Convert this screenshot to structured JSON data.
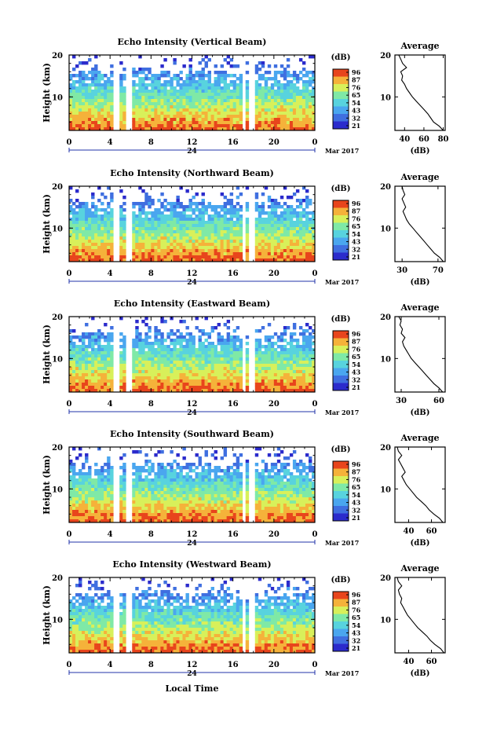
{
  "colorbar": {
    "unit_label": "(dB)",
    "ticks": [
      "96",
      "87",
      "76",
      "65",
      "54",
      "43",
      "32",
      "21"
    ],
    "colors": [
      "#2b2bcc",
      "#3f6fe0",
      "#4aa6ef",
      "#58d3de",
      "#7fe9a6",
      "#d8f05a",
      "#f5b23a",
      "#e8451c"
    ]
  },
  "shared": {
    "x_ticks": [
      "0",
      "4",
      "8",
      "12",
      "16",
      "20",
      "0"
    ],
    "day_label": "24",
    "month_label": "Mar 2017",
    "x_axis_title": "Local Time",
    "y_axis_title": "Height (km)",
    "y_ticks": [
      "20",
      "10"
    ],
    "avg_title": "Average",
    "avg_y_ticks": [
      "20",
      "10"
    ],
    "avg_x_unit": "(dB)"
  },
  "chart_data": [
    {
      "type": "heatmap",
      "title": "Echo Intensity (Vertical Beam)",
      "xlabel": "",
      "ylabel": "Height (km)",
      "xlim": [
        0,
        24
      ],
      "ylim": [
        2,
        20
      ],
      "data_gaps_hours": [
        [
          4.2,
          4.8
        ],
        [
          5.6,
          6.0
        ],
        [
          16.8,
          17.3
        ],
        [
          17.6,
          18.0
        ]
      ],
      "avg_profile": {
        "x_ticks": [
          "40",
          "60",
          "80"
        ],
        "xlim": [
          30,
          82
        ],
        "height_km": [
          2,
          3,
          4,
          5,
          6,
          7,
          8,
          9,
          10,
          11,
          12,
          13,
          14,
          15,
          16,
          17,
          18,
          19,
          20
        ],
        "db": [
          80,
          76,
          70,
          67,
          64,
          60,
          56,
          52,
          48,
          45,
          42,
          40,
          37,
          38,
          36,
          42,
          38,
          36,
          34
        ]
      }
    },
    {
      "type": "heatmap",
      "title": "Echo Intensity (Northward Beam)",
      "xlabel": "",
      "ylabel": "Height (km)",
      "xlim": [
        0,
        24
      ],
      "ylim": [
        2,
        20
      ],
      "data_gaps_hours": [
        [
          4.2,
          4.8
        ],
        [
          5.6,
          6.0
        ],
        [
          16.8,
          17.3
        ],
        [
          17.6,
          18.0
        ]
      ],
      "avg_profile": {
        "x_ticks": [
          "30",
          "70"
        ],
        "xlim": [
          22,
          78
        ],
        "height_km": [
          2,
          3,
          4,
          5,
          6,
          7,
          8,
          9,
          10,
          11,
          12,
          13,
          14,
          15,
          16,
          17,
          18,
          19,
          20
        ],
        "db": [
          76,
          72,
          66,
          62,
          58,
          54,
          50,
          46,
          42,
          38,
          35,
          33,
          31,
          34,
          32,
          30,
          33,
          31,
          30
        ]
      }
    },
    {
      "type": "heatmap",
      "title": "Echo Intensity (Eastward Beam)",
      "xlabel": "",
      "ylabel": "Height (km)",
      "xlim": [
        0,
        24
      ],
      "ylim": [
        2,
        20
      ],
      "data_gaps_hours": [
        [
          4.2,
          4.8
        ],
        [
          5.6,
          6.0
        ],
        [
          16.8,
          17.3
        ],
        [
          17.6,
          18.0
        ]
      ],
      "avg_profile": {
        "x_ticks": [
          "30",
          "60"
        ],
        "xlim": [
          25,
          65
        ],
        "height_km": [
          2,
          3,
          4,
          5,
          6,
          7,
          8,
          9,
          10,
          11,
          12,
          13,
          14,
          15,
          16,
          17,
          18,
          19,
          20
        ],
        "db": [
          63,
          60,
          56,
          53,
          50,
          47,
          44,
          41,
          38,
          36,
          34,
          32,
          31,
          33,
          30,
          31,
          29,
          30,
          28
        ]
      }
    },
    {
      "type": "heatmap",
      "title": "Echo Intensity (Southward Beam)",
      "xlabel": "",
      "ylabel": "Height (km)",
      "xlim": [
        0,
        24
      ],
      "ylim": [
        2,
        20
      ],
      "data_gaps_hours": [
        [
          4.2,
          4.8
        ],
        [
          5.6,
          6.0
        ],
        [
          16.8,
          17.3
        ],
        [
          17.6,
          18.0
        ]
      ],
      "avg_profile": {
        "x_ticks": [
          "40",
          "60"
        ],
        "xlim": [
          28,
          72
        ],
        "height_km": [
          2,
          3,
          4,
          5,
          6,
          7,
          8,
          9,
          10,
          11,
          12,
          13,
          14,
          15,
          16,
          17,
          18,
          19,
          20
        ],
        "db": [
          70,
          67,
          62,
          58,
          55,
          51,
          47,
          44,
          41,
          38,
          36,
          34,
          37,
          35,
          33,
          31,
          34,
          31,
          30
        ]
      }
    },
    {
      "type": "heatmap",
      "title": "Echo Intensity (Westward Beam)",
      "xlabel": "Local Time",
      "ylabel": "Height (km)",
      "xlim": [
        0,
        24
      ],
      "ylim": [
        2,
        20
      ],
      "data_gaps_hours": [
        [
          4.2,
          4.8
        ],
        [
          5.6,
          6.0
        ],
        [
          16.8,
          17.3
        ],
        [
          17.6,
          18.0
        ]
      ],
      "avg_profile": {
        "x_ticks": [
          "40",
          "60"
        ],
        "xlim": [
          28,
          72
        ],
        "height_km": [
          2,
          3,
          4,
          5,
          6,
          7,
          8,
          9,
          10,
          11,
          12,
          13,
          14,
          15,
          16,
          17,
          18,
          19,
          20
        ],
        "db": [
          71,
          68,
          63,
          59,
          56,
          52,
          48,
          45,
          42,
          39,
          37,
          35,
          33,
          34,
          32,
          31,
          34,
          31,
          30
        ]
      }
    }
  ]
}
